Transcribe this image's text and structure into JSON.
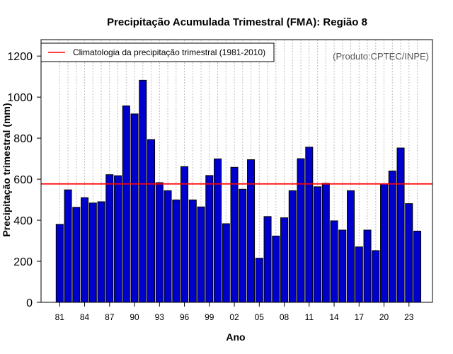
{
  "chart_data": {
    "type": "bar",
    "title": "Precipitação Acumulada Trimestral (FMA): Região 8",
    "xlabel": "Ano",
    "ylabel": "Precipitação trimestral (mm)",
    "ylim": [
      0,
      1280
    ],
    "yticks": [
      0,
      200,
      400,
      600,
      800,
      1000,
      1200
    ],
    "categories": [
      "81",
      "82",
      "83",
      "84",
      "85",
      "86",
      "87",
      "88",
      "89",
      "90",
      "91",
      "92",
      "93",
      "94",
      "95",
      "96",
      "97",
      "98",
      "99",
      "00",
      "01",
      "02",
      "03",
      "04",
      "05",
      "06",
      "07",
      "08",
      "09",
      "10",
      "11",
      "12",
      "13",
      "14",
      "15",
      "16",
      "17",
      "18",
      "19",
      "20",
      "21",
      "22",
      "23",
      "24"
    ],
    "xtick_labels": [
      "81",
      "84",
      "87",
      "90",
      "93",
      "96",
      "99",
      "02",
      "05",
      "08",
      "11",
      "14",
      "17",
      "20",
      "23"
    ],
    "values": [
      380,
      548,
      463,
      510,
      484,
      490,
      622,
      617,
      957,
      918,
      1082,
      793,
      583,
      544,
      499,
      661,
      499,
      465,
      618,
      699,
      383,
      658,
      551,
      695,
      215,
      418,
      323,
      412,
      544,
      700,
      756,
      563,
      580,
      397,
      352,
      544,
      270,
      352,
      252,
      577,
      640,
      752,
      481,
      347
    ],
    "climatology": 577,
    "grid": "vertical dotted",
    "legend": {
      "position": "top-left",
      "entries": [
        {
          "label": "Climatologia da precipitação trimestral (1981-2010)",
          "color": "#ff0000"
        }
      ]
    },
    "credit": "(Produto:CPTEC/INPE)",
    "bar_color": "#0000cd",
    "climatology_color": "#ff0000"
  }
}
